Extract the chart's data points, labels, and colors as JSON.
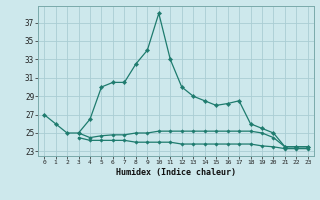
{
  "x": [
    0,
    1,
    2,
    3,
    4,
    5,
    6,
    7,
    8,
    9,
    10,
    11,
    12,
    13,
    14,
    15,
    16,
    17,
    18,
    19,
    20,
    21,
    22,
    23
  ],
  "line1": [
    27,
    26,
    25,
    25,
    26.5,
    30,
    30.5,
    30.5,
    32.5,
    34,
    38,
    33,
    30,
    29,
    28.5,
    28,
    28.2,
    28.5,
    26,
    25.5,
    25,
    23.5,
    23.5,
    23.5
  ],
  "line2_x": [
    3,
    4,
    5,
    6,
    7,
    8,
    9,
    10,
    11,
    12,
    13,
    14,
    15,
    16,
    17,
    18,
    19,
    20,
    21,
    22,
    23
  ],
  "line2_y": [
    25,
    24.5,
    24.7,
    24.8,
    24.8,
    25,
    25,
    25.2,
    25.2,
    25.2,
    25.2,
    25.2,
    25.2,
    25.2,
    25.2,
    25.2,
    25,
    24.5,
    23.5,
    23.5,
    23.5
  ],
  "line3_x": [
    3,
    4,
    5,
    6,
    7,
    8,
    9,
    10,
    11,
    12,
    13,
    14,
    15,
    16,
    17,
    18,
    19,
    20,
    21,
    22,
    23
  ],
  "line3_y": [
    24.5,
    24.2,
    24.2,
    24.2,
    24.2,
    24.0,
    24.0,
    24.0,
    24.0,
    23.8,
    23.8,
    23.8,
    23.8,
    23.8,
    23.8,
    23.8,
    23.6,
    23.5,
    23.3,
    23.3,
    23.3
  ],
  "ylim": [
    22.5,
    38.8
  ],
  "yticks": [
    23,
    25,
    27,
    29,
    31,
    33,
    35,
    37
  ],
  "xlim": [
    -0.5,
    23.5
  ],
  "xlabel": "Humidex (Indice chaleur)",
  "line_color": "#1e7b6e",
  "bg_color": "#cde8ec",
  "grid_color": "#aacdd4",
  "spine_color": "#7aaaaa",
  "tick_color": "#222222",
  "xlabel_color": "#111111"
}
